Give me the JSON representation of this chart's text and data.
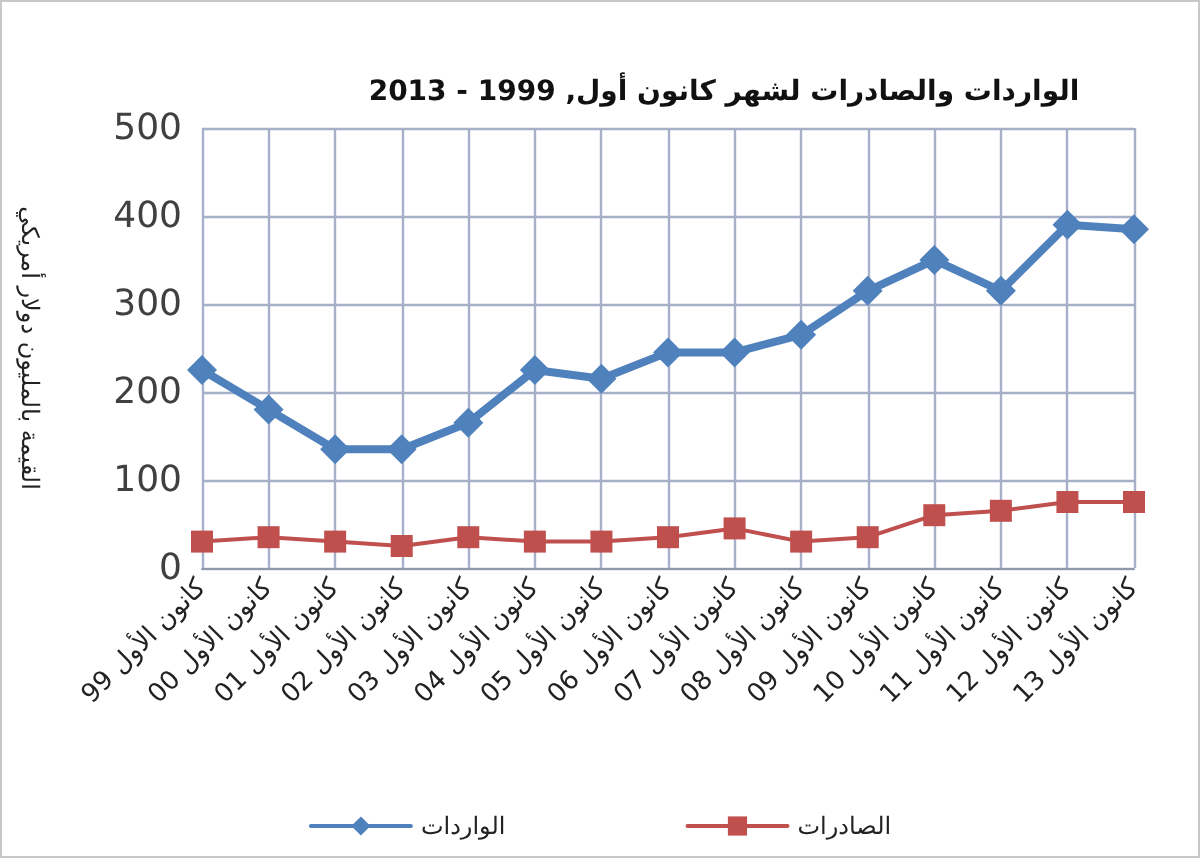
{
  "chart_data": {
    "type": "line",
    "title": "الواردات والصادرات لشهر كانون أول, 1999 - 2013",
    "ylabel": "القيمة بالمليون دولار أمريكي",
    "categories": [
      "كانون الأول 99",
      "كانون الأول 00",
      "كانون الأول 01",
      "كانون الأول 02",
      "كانون الأول 03",
      "كانون الأول 04",
      "كانون الأول 05",
      "كانون الأول 06",
      "كانون الأول 07",
      "كانون الأول 08",
      "كانون الأول 09",
      "كانون الأول 10",
      "كانون الأول 11",
      "كانون الأول 12",
      "كانون الأول 13"
    ],
    "series": [
      {
        "name": "الواردات",
        "color": "#4f81bd",
        "marker": "diamond",
        "values": [
          225,
          180,
          135,
          135,
          165,
          225,
          215,
          245,
          245,
          265,
          315,
          350,
          315,
          390,
          385
        ]
      },
      {
        "name": "الصادرات",
        "color": "#c0504d",
        "marker": "square",
        "values": [
          30,
          35,
          30,
          25,
          35,
          30,
          30,
          35,
          45,
          30,
          35,
          60,
          65,
          75,
          75
        ]
      }
    ],
    "ylim": [
      0,
      500
    ],
    "yticks": [
      0,
      100,
      200,
      300,
      400,
      500
    ],
    "grid": true,
    "legend": "bottom"
  }
}
